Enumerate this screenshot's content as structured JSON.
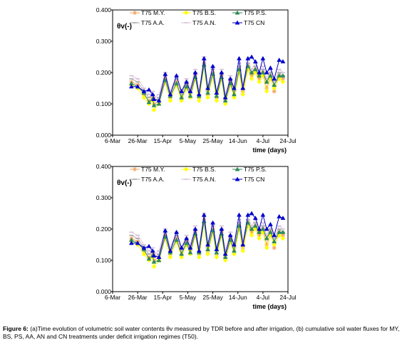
{
  "caption": {
    "label": "Figure 6:",
    "text": " (a)Time evolution of volumetric soil water contents θv measured by TDR before and after irrigation, (b) cumulative soil water fluxes for MY, BS, PS, AA, AN and CN treatments under deficit irrigation regimes (T50)."
  },
  "colors": {
    "MY": "#f4a460",
    "BS": "#ffff00",
    "PS": "#2e8b57",
    "AA": "#a9a9a9",
    "AN": "#d8bfd8",
    "CN": "#0000cd"
  },
  "chart_data": [
    {
      "type": "line",
      "panel": "a",
      "ylabel": "θv(-)",
      "xlabel": "time (days)",
      "ylim": [
        0,
        0.4
      ],
      "yticks": [
        "0.000",
        "0.100",
        "0.200",
        "0.300",
        "0.400"
      ],
      "xticks": [
        "6-Mar",
        "26-Mar",
        "15-Apr",
        "5-May",
        "25-May",
        "14-Jun",
        "4-Jul",
        "24-Jul"
      ],
      "legend_position": "top",
      "x": [
        "2010-03-21",
        "2010-03-26",
        "2010-03-31",
        "2010-04-04",
        "2010-04-07",
        "2010-04-08",
        "2010-04-12",
        "2010-04-17",
        "2010-04-21",
        "2010-04-26",
        "2010-04-30",
        "2010-05-04",
        "2010-05-07",
        "2010-05-11",
        "2010-05-14",
        "2010-05-18",
        "2010-05-21",
        "2010-05-25",
        "2010-05-28",
        "2010-06-01",
        "2010-06-04",
        "2010-06-08",
        "2010-06-11",
        "2010-06-15",
        "2010-06-18",
        "2010-06-22",
        "2010-06-25",
        "2010-06-28",
        "2010-07-01",
        "2010-07-04",
        "2010-07-07",
        "2010-07-10",
        "2010-07-13",
        "2010-07-17",
        "2010-07-20"
      ],
      "series": [
        {
          "name": "T75 M.Y.",
          "key": "MY",
          "marker": "star",
          "values": [
            0.17,
            0.16,
            0.13,
            0.11,
            0.12,
            0.1,
            0.11,
            0.18,
            0.12,
            0.17,
            0.12,
            0.16,
            0.13,
            0.19,
            0.12,
            0.23,
            0.13,
            0.2,
            0.12,
            0.19,
            0.11,
            0.17,
            0.13,
            0.21,
            0.14,
            0.22,
            0.19,
            0.21,
            0.18,
            0.2,
            0.15,
            0.19,
            0.14,
            0.19,
            0.18
          ]
        },
        {
          "name": "T75 B.S.",
          "key": "BS",
          "marker": "diamond",
          "values": [
            0.16,
            0.15,
            0.12,
            0.1,
            0.11,
            0.08,
            0.1,
            0.17,
            0.11,
            0.16,
            0.11,
            0.15,
            0.12,
            0.18,
            0.11,
            0.22,
            0.12,
            0.19,
            0.11,
            0.18,
            0.1,
            0.16,
            0.12,
            0.2,
            0.13,
            0.21,
            0.18,
            0.2,
            0.17,
            0.19,
            0.14,
            0.18,
            0.15,
            0.18,
            0.17
          ]
        },
        {
          "name": "T75 P.S.",
          "key": "PS",
          "marker": "triangle",
          "values": [
            0.165,
            0.155,
            0.135,
            0.105,
            0.115,
            0.095,
            0.1,
            0.175,
            0.125,
            0.165,
            0.12,
            0.155,
            0.125,
            0.185,
            0.125,
            0.225,
            0.135,
            0.195,
            0.125,
            0.185,
            0.11,
            0.165,
            0.13,
            0.21,
            0.15,
            0.22,
            0.2,
            0.21,
            0.19,
            0.2,
            0.17,
            0.19,
            0.16,
            0.19,
            0.19
          ]
        },
        {
          "name": "T75 A.A.",
          "key": "AA",
          "marker": "dash",
          "values": [
            0.18,
            0.17,
            0.14,
            0.12,
            0.13,
            0.11,
            0.12,
            0.19,
            0.13,
            0.18,
            0.13,
            0.17,
            0.14,
            0.2,
            0.13,
            0.24,
            0.14,
            0.21,
            0.13,
            0.2,
            0.12,
            0.18,
            0.14,
            0.22,
            0.15,
            0.23,
            0.2,
            0.22,
            0.19,
            0.21,
            0.17,
            0.2,
            0.16,
            0.2,
            0.19
          ]
        },
        {
          "name": "T75 A.N.",
          "key": "AN",
          "marker": "dash",
          "values": [
            0.19,
            0.18,
            0.15,
            0.13,
            0.14,
            0.12,
            0.13,
            0.2,
            0.14,
            0.19,
            0.14,
            0.18,
            0.15,
            0.21,
            0.14,
            0.25,
            0.15,
            0.22,
            0.14,
            0.21,
            0.13,
            0.19,
            0.15,
            0.23,
            0.16,
            0.24,
            0.21,
            0.23,
            0.2,
            0.22,
            0.18,
            0.21,
            0.17,
            0.21,
            0.2
          ]
        },
        {
          "name": "T75 CN",
          "key": "CN",
          "marker": "triangle",
          "values": [
            0.155,
            0.155,
            0.14,
            0.145,
            0.13,
            0.115,
            0.11,
            0.195,
            0.13,
            0.19,
            0.14,
            0.17,
            0.14,
            0.2,
            0.13,
            0.245,
            0.15,
            0.22,
            0.135,
            0.2,
            0.12,
            0.18,
            0.15,
            0.245,
            0.15,
            0.245,
            0.25,
            0.235,
            0.2,
            0.245,
            0.2,
            0.215,
            0.18,
            0.24,
            0.235
          ]
        }
      ]
    },
    {
      "type": "line",
      "panel": "b",
      "ylabel": "θv(-)",
      "xlabel": "time (days)",
      "ylim": [
        0,
        0.4
      ],
      "yticks": [
        "0.000",
        "0.100",
        "0.200",
        "0.300",
        "0.400"
      ],
      "xticks": [
        "6-Mar",
        "26-Mar",
        "15-Apr",
        "5-May",
        "25-May",
        "14-Jun",
        "4-Jul",
        "24-Jul"
      ],
      "legend_position": "top",
      "x": [
        "2010-03-21",
        "2010-03-26",
        "2010-03-31",
        "2010-04-04",
        "2010-04-07",
        "2010-04-08",
        "2010-04-12",
        "2010-04-17",
        "2010-04-21",
        "2010-04-26",
        "2010-04-30",
        "2010-05-04",
        "2010-05-07",
        "2010-05-11",
        "2010-05-14",
        "2010-05-18",
        "2010-05-21",
        "2010-05-25",
        "2010-05-28",
        "2010-06-01",
        "2010-06-04",
        "2010-06-08",
        "2010-06-11",
        "2010-06-15",
        "2010-06-18",
        "2010-06-22",
        "2010-06-25",
        "2010-06-28",
        "2010-07-01",
        "2010-07-04",
        "2010-07-07",
        "2010-07-10",
        "2010-07-13",
        "2010-07-17",
        "2010-07-20"
      ],
      "series": [
        {
          "name": "T75 M.Y.",
          "key": "MY",
          "marker": "star",
          "values": [
            0.17,
            0.16,
            0.13,
            0.11,
            0.12,
            0.1,
            0.11,
            0.18,
            0.12,
            0.17,
            0.12,
            0.16,
            0.13,
            0.19,
            0.12,
            0.23,
            0.13,
            0.2,
            0.12,
            0.19,
            0.11,
            0.17,
            0.13,
            0.21,
            0.14,
            0.22,
            0.19,
            0.21,
            0.18,
            0.2,
            0.15,
            0.19,
            0.14,
            0.19,
            0.18
          ]
        },
        {
          "name": "T75 B.S.",
          "key": "BS",
          "marker": "diamond",
          "values": [
            0.16,
            0.15,
            0.12,
            0.1,
            0.11,
            0.08,
            0.1,
            0.17,
            0.11,
            0.16,
            0.11,
            0.15,
            0.12,
            0.18,
            0.11,
            0.22,
            0.12,
            0.19,
            0.11,
            0.18,
            0.1,
            0.16,
            0.12,
            0.2,
            0.13,
            0.21,
            0.18,
            0.2,
            0.17,
            0.19,
            0.14,
            0.18,
            0.15,
            0.18,
            0.17
          ]
        },
        {
          "name": "T75 P.S.",
          "key": "PS",
          "marker": "triangle",
          "values": [
            0.165,
            0.155,
            0.135,
            0.105,
            0.115,
            0.095,
            0.1,
            0.175,
            0.125,
            0.165,
            0.12,
            0.155,
            0.125,
            0.185,
            0.125,
            0.225,
            0.135,
            0.195,
            0.125,
            0.185,
            0.11,
            0.165,
            0.13,
            0.21,
            0.15,
            0.22,
            0.2,
            0.21,
            0.19,
            0.2,
            0.17,
            0.19,
            0.16,
            0.19,
            0.19
          ]
        },
        {
          "name": "T75 A.A.",
          "key": "AA",
          "marker": "dash",
          "values": [
            0.18,
            0.17,
            0.14,
            0.12,
            0.13,
            0.11,
            0.12,
            0.19,
            0.13,
            0.18,
            0.13,
            0.17,
            0.14,
            0.2,
            0.13,
            0.24,
            0.14,
            0.21,
            0.13,
            0.2,
            0.12,
            0.18,
            0.14,
            0.22,
            0.15,
            0.23,
            0.2,
            0.22,
            0.19,
            0.21,
            0.17,
            0.2,
            0.16,
            0.2,
            0.19
          ]
        },
        {
          "name": "T75 A.N.",
          "key": "AN",
          "marker": "dash",
          "values": [
            0.19,
            0.18,
            0.15,
            0.13,
            0.14,
            0.12,
            0.13,
            0.2,
            0.14,
            0.19,
            0.14,
            0.18,
            0.15,
            0.21,
            0.14,
            0.25,
            0.15,
            0.22,
            0.14,
            0.21,
            0.13,
            0.19,
            0.15,
            0.23,
            0.16,
            0.24,
            0.21,
            0.23,
            0.2,
            0.22,
            0.18,
            0.21,
            0.17,
            0.21,
            0.2
          ]
        },
        {
          "name": "T75 CN",
          "key": "CN",
          "marker": "triangle",
          "values": [
            0.155,
            0.155,
            0.14,
            0.145,
            0.13,
            0.115,
            0.11,
            0.195,
            0.13,
            0.19,
            0.14,
            0.17,
            0.14,
            0.2,
            0.13,
            0.245,
            0.15,
            0.22,
            0.135,
            0.2,
            0.12,
            0.18,
            0.15,
            0.245,
            0.15,
            0.245,
            0.25,
            0.235,
            0.2,
            0.245,
            0.2,
            0.215,
            0.18,
            0.24,
            0.235
          ]
        }
      ]
    }
  ]
}
